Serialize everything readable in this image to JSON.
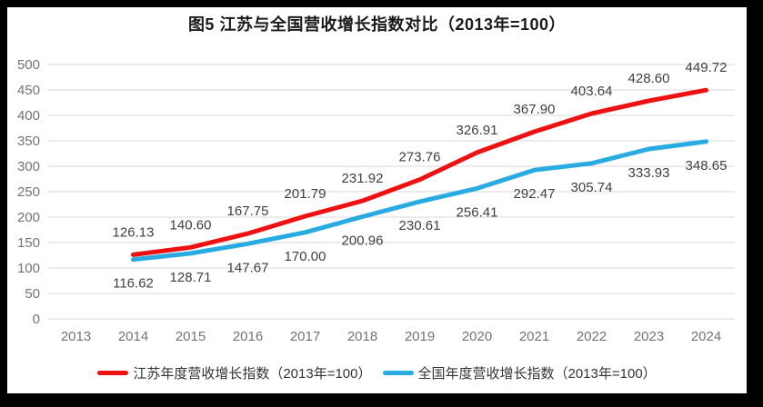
{
  "title": "图5  江苏与全国营收增长指数对比（2013年=100）",
  "colors": {
    "frame_background": "#000000",
    "panel_background": "#ffffff",
    "gridline": "#d9d9d9",
    "tick_label": "#737373",
    "data_label": "#3f3f3f",
    "title_text": "#1a1a1a",
    "jiangsu_line": "#ee1111",
    "national_line": "#29abe2"
  },
  "chart_data": {
    "type": "line",
    "title": "图5  江苏与全国营收增长指数对比（2013年=100）",
    "categories": [
      "2013",
      "2014",
      "2015",
      "2016",
      "2017",
      "2018",
      "2019",
      "2020",
      "2021",
      "2022",
      "2023",
      "2024"
    ],
    "series": [
      {
        "id": "jiangsu",
        "name": "江苏年度营收增长指数（2013年=100）",
        "color": "#ee1111",
        "label_position": "above",
        "values": [
          null,
          126.13,
          140.6,
          167.75,
          201.79,
          231.92,
          273.76,
          326.91,
          367.9,
          403.64,
          428.6,
          449.72
        ]
      },
      {
        "id": "national",
        "name": "全国年度营收增长指数（2013年=100）",
        "color": "#29abe2",
        "label_position": "below",
        "values": [
          null,
          116.62,
          128.71,
          147.67,
          170.0,
          200.96,
          230.61,
          256.41,
          292.47,
          305.74,
          333.93,
          348.65
        ]
      }
    ],
    "xlabel": "",
    "ylabel": "",
    "ylim": [
      0,
      500
    ],
    "y_ticks": [
      0,
      50,
      100,
      150,
      200,
      250,
      300,
      350,
      400,
      450,
      500
    ],
    "grid": true,
    "legend_position": "bottom",
    "data_labels_decimals": 2
  }
}
